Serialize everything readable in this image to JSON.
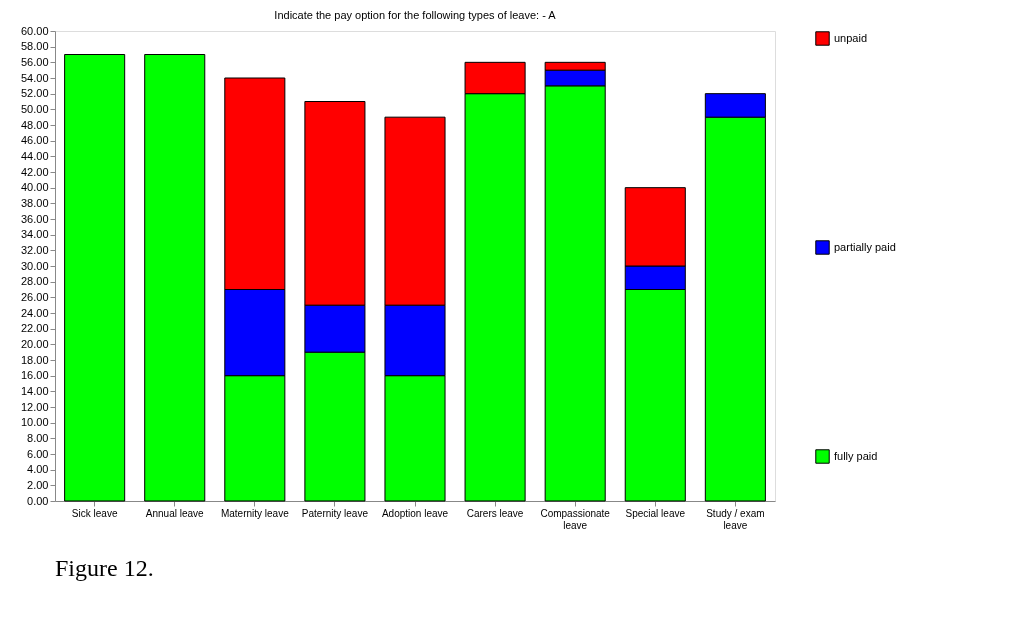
{
  "chart_data": {
    "type": "bar",
    "title": "Indicate the pay option for the following types of leave: - A",
    "categories": [
      "Sick leave",
      "Annual leave",
      "Maternity leave",
      "Paternity leave",
      "Adoption leave",
      "Carers leave",
      "Compassionate leave",
      "Special leave",
      "Study / exam leave"
    ],
    "stacked": true,
    "series": [
      {
        "name": "fully paid",
        "color": "#00ff00",
        "values": [
          57,
          57,
          16,
          19,
          16,
          52,
          53,
          27,
          49
        ]
      },
      {
        "name": "partially paid",
        "color": "#0000ff",
        "values": [
          0,
          0,
          11,
          6,
          9,
          0,
          2,
          3,
          3
        ]
      },
      {
        "name": "unpaid",
        "color": "#ff0000",
        "values": [
          0,
          0,
          27,
          26,
          24,
          4,
          1,
          10,
          0
        ]
      }
    ],
    "ylim": [
      0,
      60
    ],
    "yticks": [
      {
        "value": 0,
        "label": "0.00"
      },
      {
        "value": 2,
        "label": "2.00"
      },
      {
        "value": 4,
        "label": "4.00"
      },
      {
        "value": 6,
        "label": "6.00"
      },
      {
        "value": 8,
        "label": "8.00"
      },
      {
        "value": 10,
        "label": "10.00"
      },
      {
        "value": 12,
        "label": "12.00"
      },
      {
        "value": 14,
        "label": "14.00"
      },
      {
        "value": 16,
        "label": "16.00"
      },
      {
        "value": 18,
        "label": "18.00"
      },
      {
        "value": 20,
        "label": "20.00"
      },
      {
        "value": 22,
        "label": "22.00"
      },
      {
        "value": 24,
        "label": "24.00"
      },
      {
        "value": 26,
        "label": "26.00"
      },
      {
        "value": 28,
        "label": "28.00"
      },
      {
        "value": 30,
        "label": "30.00"
      },
      {
        "value": 32,
        "label": "32.00"
      },
      {
        "value": 34,
        "label": "34.00"
      },
      {
        "value": 36,
        "label": "36.00"
      },
      {
        "value": 38,
        "label": "38.00"
      },
      {
        "value": 40,
        "label": "40.00"
      },
      {
        "value": 42,
        "label": "42.00"
      },
      {
        "value": 44,
        "label": "44.00"
      },
      {
        "value": 46,
        "label": "46.00"
      },
      {
        "value": 48,
        "label": "48.00"
      },
      {
        "value": 50,
        "label": "50.00"
      },
      {
        "value": 52,
        "label": "52.00"
      },
      {
        "value": 54,
        "label": "54.00"
      },
      {
        "value": 56,
        "label": "56.00"
      },
      {
        "value": 58,
        "label": "58.00"
      },
      {
        "value": 60,
        "label": "60.00"
      }
    ],
    "grid": false,
    "legend": "right",
    "annotations": [
      "Figure 12."
    ]
  }
}
